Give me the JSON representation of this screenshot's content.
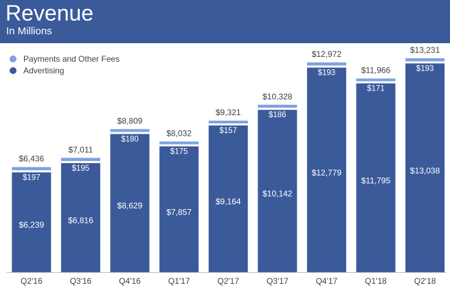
{
  "header": {
    "title": "Revenue",
    "subtitle": "In Millions"
  },
  "colors": {
    "header_bg": "#3b5a9a",
    "advertising": "#3b5a9a",
    "payments": "#7fa1e0",
    "axis": "#404040"
  },
  "legend": {
    "items": [
      {
        "label": "Payments and Other Fees",
        "color": "#7fa1e0"
      },
      {
        "label": "Advertising",
        "color": "#3b5a9a"
      }
    ]
  },
  "chart_data": {
    "type": "bar",
    "stacked": true,
    "title": "Revenue",
    "subtitle": "In Millions",
    "categories": [
      "Q2'16",
      "Q3'16",
      "Q4'16",
      "Q1'17",
      "Q2'17",
      "Q3'17",
      "Q4'17",
      "Q1'18",
      "Q2'18"
    ],
    "series": [
      {
        "name": "Advertising",
        "values": [
          6239,
          6816,
          8629,
          7857,
          9164,
          10142,
          12779,
          11795,
          13038
        ],
        "labels": [
          "$6,239",
          "$6,816",
          "$8,629",
          "$7,857",
          "$9,164",
          "$10,142",
          "$12,779",
          "$11,795",
          "$13,038"
        ]
      },
      {
        "name": "Payments and Other Fees",
        "values": [
          197,
          195,
          180,
          175,
          157,
          186,
          193,
          171,
          193
        ],
        "labels": [
          "$197",
          "$195",
          "$180",
          "$175",
          "$157",
          "$186",
          "$193",
          "$171",
          "$193"
        ]
      }
    ],
    "totals": [
      6436,
      7011,
      8809,
      8032,
      9321,
      10328,
      12972,
      11966,
      13231
    ],
    "total_labels": [
      "$6,436",
      "$7,011",
      "$8,809",
      "$8,032",
      "$9,321",
      "$10,328",
      "$12,972",
      "$11,966",
      "$13,231"
    ],
    "ylim": [
      0,
      13231
    ],
    "grid": false,
    "legend_position": "top-left"
  }
}
